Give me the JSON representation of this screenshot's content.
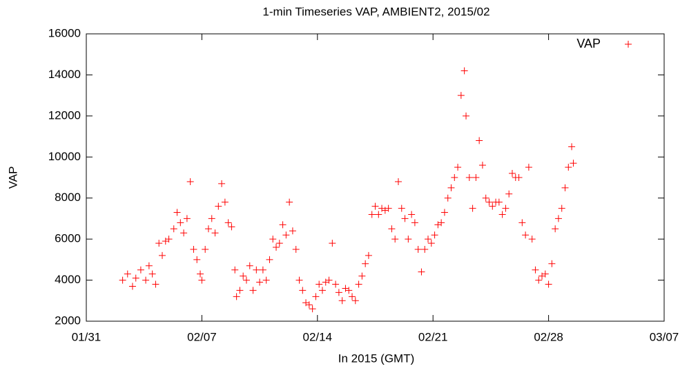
{
  "chart_data": {
    "type": "scatter",
    "title": "1-min Timeseries VAP, AMBIENT2, 2015/02",
    "x_label": "In 2015 (GMT)",
    "y_label": "VAP",
    "x": [
      2.2,
      2.5,
      2.8,
      3.0,
      3.3,
      3.6,
      3.8,
      4.0,
      4.2,
      4.4,
      4.6,
      4.8,
      5.0,
      5.3,
      5.5,
      5.7,
      5.9,
      6.1,
      6.3,
      6.5,
      6.7,
      6.9,
      7.0,
      7.2,
      7.4,
      7.6,
      7.8,
      8.0,
      8.2,
      8.4,
      8.6,
      8.8,
      9.0,
      9.1,
      9.3,
      9.5,
      9.7,
      9.9,
      10.1,
      10.3,
      10.5,
      10.7,
      10.9,
      11.1,
      11.3,
      11.5,
      11.7,
      11.9,
      12.1,
      12.3,
      12.5,
      12.7,
      12.9,
      13.1,
      13.3,
      13.5,
      13.7,
      13.9,
      14.1,
      14.3,
      14.5,
      14.7,
      14.9,
      15.1,
      15.3,
      15.5,
      15.7,
      15.9,
      16.1,
      16.3,
      16.5,
      16.7,
      16.9,
      17.1,
      17.3,
      17.5,
      17.7,
      17.9,
      18.1,
      18.3,
      18.5,
      18.7,
      18.9,
      19.1,
      19.3,
      19.5,
      19.7,
      19.9,
      20.1,
      20.3,
      20.5,
      20.7,
      20.9,
      21.1,
      21.3,
      21.5,
      21.7,
      21.9,
      22.1,
      22.3,
      22.5,
      22.7,
      22.9,
      23.0,
      23.2,
      23.4,
      23.6,
      23.8,
      24.0,
      24.2,
      24.4,
      24.6,
      24.8,
      25.0,
      25.2,
      25.4,
      25.6,
      25.8,
      26.0,
      26.2,
      26.4,
      26.6,
      26.8,
      27.0,
      27.2,
      27.4,
      27.6,
      27.8,
      28.0,
      28.2,
      28.4,
      28.6,
      28.8,
      29.0,
      29.2,
      29.4,
      29.5
    ],
    "series": [
      {
        "name": "VAP",
        "color": "#ff0000",
        "values": [
          4000,
          4300,
          3700,
          4100,
          4500,
          4000,
          4700,
          4300,
          3800,
          5800,
          5200,
          5900,
          6000,
          6500,
          7300,
          6800,
          6300,
          7000,
          8800,
          5500,
          5000,
          4300,
          4000,
          5500,
          6500,
          7000,
          6300,
          7600,
          8700,
          7800,
          6800,
          6600,
          4500,
          3200,
          3500,
          4200,
          4000,
          4700,
          3500,
          4500,
          3900,
          4500,
          4000,
          5000,
          6000,
          5600,
          5800,
          6700,
          6200,
          7800,
          6400,
          5500,
          4000,
          3500,
          2900,
          2800,
          2600,
          3200,
          3800,
          3500,
          3900,
          4000,
          5800,
          3800,
          3400,
          3000,
          3600,
          3500,
          3200,
          3000,
          3800,
          4200,
          4800,
          5200,
          7200,
          7600,
          7200,
          7500,
          7400,
          7500,
          6500,
          6000,
          8800,
          7500,
          7000,
          6000,
          7200,
          6800,
          5500,
          4400,
          5500,
          6000,
          5800,
          6200,
          6700,
          6800,
          7300,
          8000,
          8500,
          9000,
          9500,
          13000,
          14200,
          12000,
          9000,
          7500,
          9000,
          10800,
          9600,
          8000,
          7800,
          7600,
          7800,
          7800,
          7200,
          7500,
          8200,
          9200,
          9000,
          9000,
          6800,
          6200,
          9500,
          6000,
          4500,
          4000,
          4200,
          4300,
          3800,
          4800,
          6500,
          7000,
          7500,
          8500,
          9500,
          10500,
          9700
        ]
      }
    ],
    "xlim": [
      0,
      35
    ],
    "xticks": [
      {
        "value": 0,
        "label": "01/31"
      },
      {
        "value": 7,
        "label": "02/07"
      },
      {
        "value": 14,
        "label": "02/14"
      },
      {
        "value": 21,
        "label": "02/21"
      },
      {
        "value": 28,
        "label": "02/28"
      },
      {
        "value": 35,
        "label": "03/07"
      }
    ],
    "ylim": [
      2000,
      16000
    ],
    "yticks": [
      2000,
      4000,
      6000,
      8000,
      10000,
      12000,
      14000,
      16000
    ],
    "legend": "top-right"
  }
}
